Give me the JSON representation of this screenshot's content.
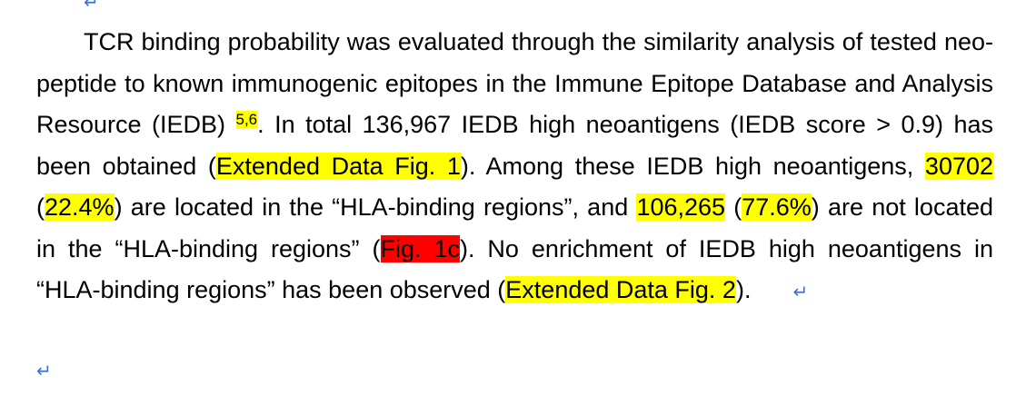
{
  "paragraph_mark": "↵",
  "paragraph": {
    "s1": "TCR binding probability was evaluated through the similarity analysis of tested neo-peptide to known immunogenic epitopes in the Immune Epitope Database and Analysis Resource (IEDB) ",
    "ref1": "5,6",
    "s2": ". In total 136,967 IEDB high neoantigens (IEDB score > 0.9) has been obtained (",
    "hl_extended_fig1": "Extended Data Fig. 1",
    "s3": "). Among these IEDB high neoantigens, ",
    "hl_count_in": "30702",
    "s4": " (",
    "hl_pct_in": "22.4%",
    "s5": ") are located in the “HLA-binding regions”, and ",
    "hl_count_out": "106,265",
    "s6": " (",
    "hl_pct_out": "77.6%",
    "s7": ") are not located in the “HLA-binding regions” (",
    "hl_fig1c": "Fig. 1c",
    "s8": "). No enrichment of IEDB high neoantigens in “HLA-binding regions” has been observed (",
    "hl_extended_fig2": "Extended Data Fig. 2",
    "s9": ")."
  },
  "colors": {
    "highlight_yellow": "#ffff00",
    "highlight_red": "#ff0000",
    "paragraph_mark": "#3a72d8"
  }
}
